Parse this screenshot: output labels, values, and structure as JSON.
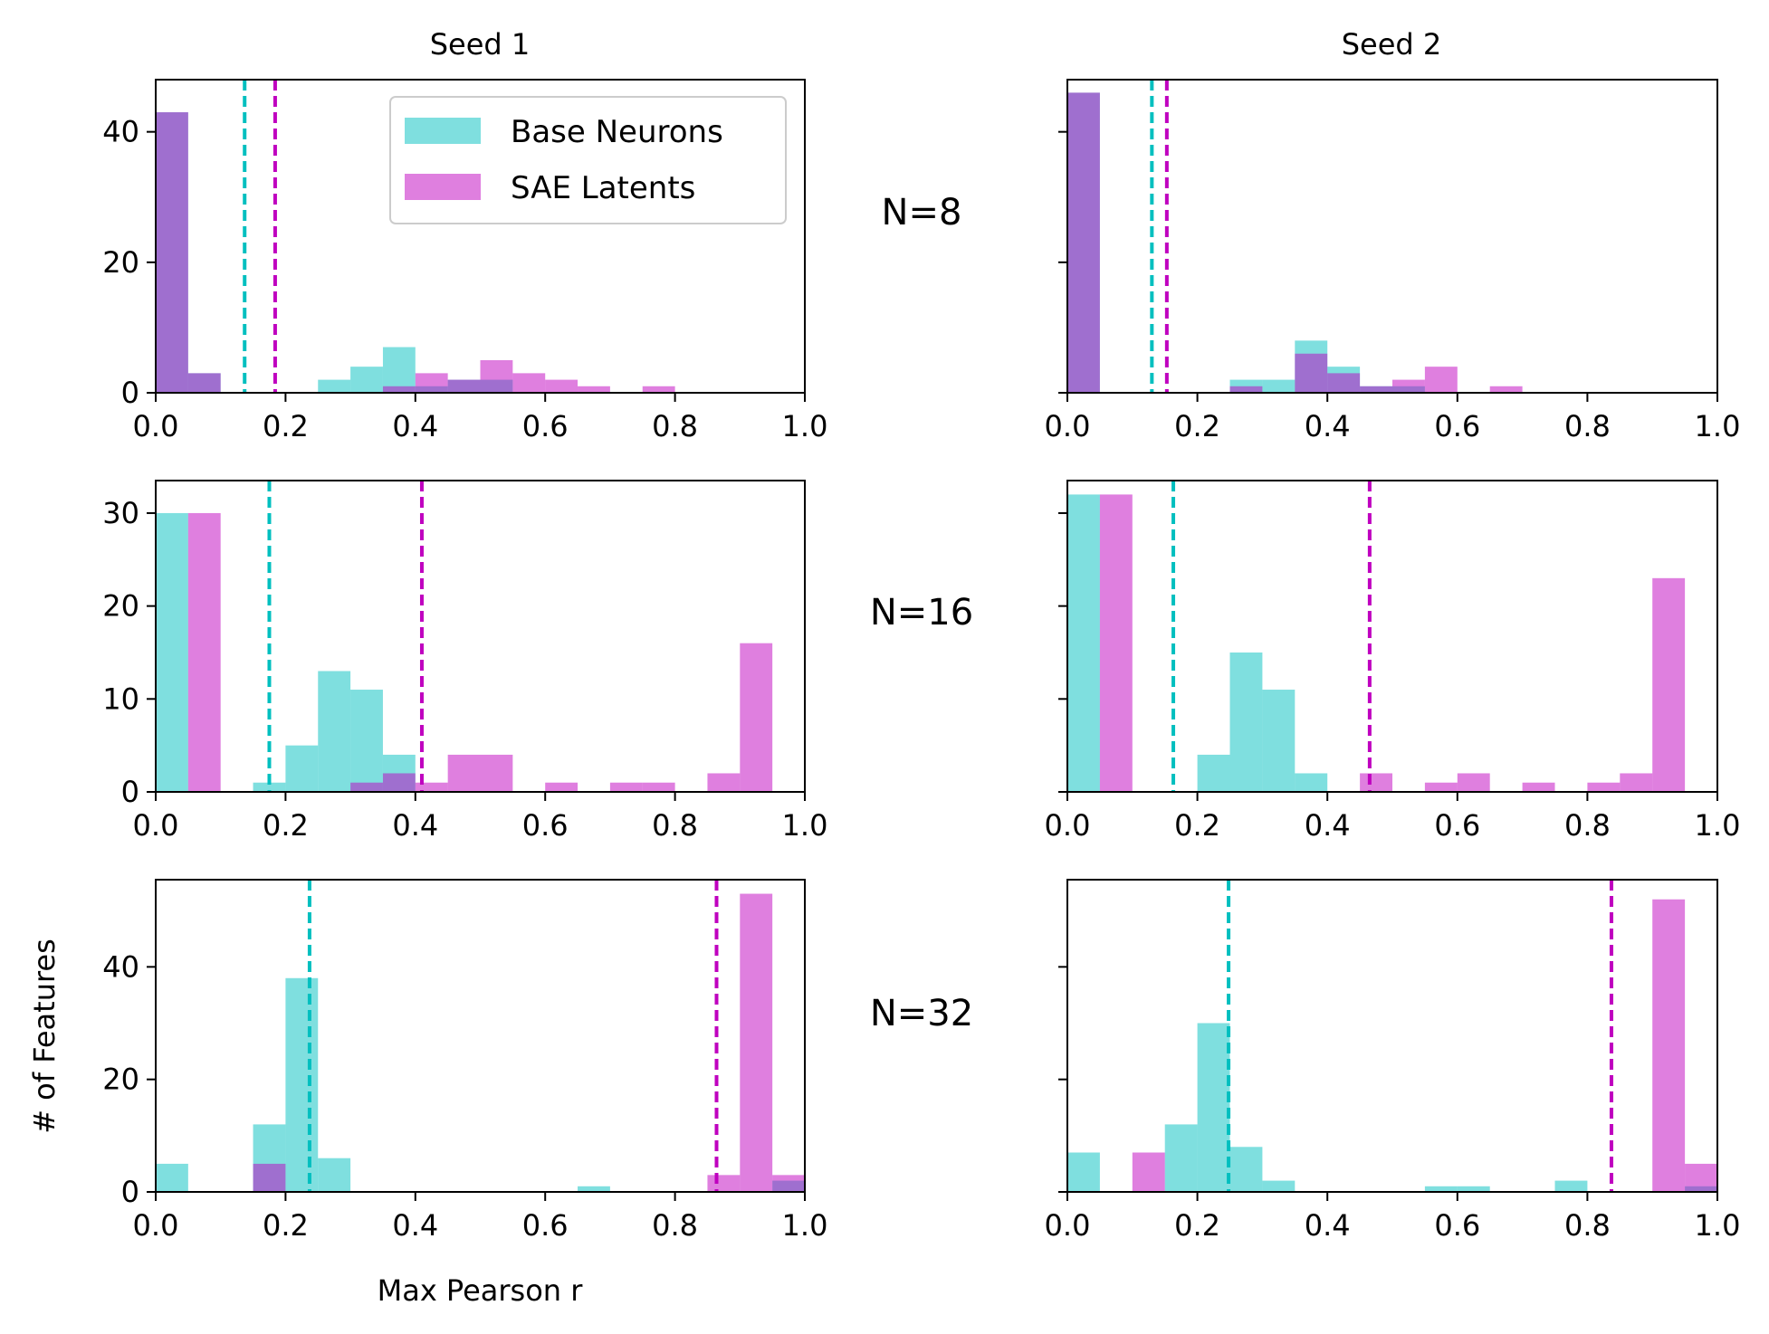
{
  "figure": {
    "colors": {
      "base": "#00bfbf",
      "sae": "#bf00bf",
      "base_fill": "#00bfbf",
      "sae_fill": "#bf00bf",
      "bar_alpha": 0.5
    }
  },
  "chart_data": {
    "type": "bar",
    "description_type": "histogram-grid",
    "col_titles": [
      "Seed 1",
      "Seed 2"
    ],
    "row_labels": [
      "N=8",
      "N=16",
      "N=32"
    ],
    "xlabel": "Max Pearson r",
    "ylabel": "# of Features",
    "legend": {
      "base": "Base Neurons",
      "sae": "SAE Latents",
      "placement": "upper-right of top-left panel"
    },
    "xlim": [
      0,
      1.0
    ],
    "x_ticks": [
      "0.0",
      "0.2",
      "0.4",
      "0.6",
      "0.8",
      "1.0"
    ],
    "x_tick_values": [
      0,
      0.2,
      0.4,
      0.6,
      0.8,
      1.0
    ],
    "bin_width": 0.05,
    "rows": [
      {
        "ylim": [
          0,
          48
        ],
        "y_ticks": [
          0,
          20,
          40
        ],
        "panels": [
          {
            "base": [
              [
                0.0,
                43
              ],
              [
                0.05,
                3
              ],
              [
                0.25,
                2
              ],
              [
                0.3,
                4
              ],
              [
                0.35,
                7
              ],
              [
                0.4,
                1
              ],
              [
                0.45,
                2
              ],
              [
                0.5,
                2
              ]
            ],
            "sae": [
              [
                0.0,
                43
              ],
              [
                0.05,
                3
              ],
              [
                0.35,
                1
              ],
              [
                0.4,
                3
              ],
              [
                0.45,
                2
              ],
              [
                0.5,
                5
              ],
              [
                0.55,
                3
              ],
              [
                0.6,
                2
              ],
              [
                0.65,
                1
              ],
              [
                0.75,
                1
              ]
            ],
            "base_mean": 0.137,
            "sae_mean": 0.184
          },
          {
            "base": [
              [
                0.0,
                46
              ],
              [
                0.25,
                2
              ],
              [
                0.3,
                2
              ],
              [
                0.35,
                8
              ],
              [
                0.4,
                4
              ],
              [
                0.45,
                1
              ],
              [
                0.5,
                1
              ]
            ],
            "sae": [
              [
                0.0,
                46
              ],
              [
                0.25,
                1
              ],
              [
                0.35,
                6
              ],
              [
                0.4,
                3
              ],
              [
                0.45,
                1
              ],
              [
                0.5,
                2
              ],
              [
                0.55,
                4
              ],
              [
                0.65,
                1
              ]
            ],
            "base_mean": 0.13,
            "sae_mean": 0.153
          }
        ]
      },
      {
        "ylim": [
          0,
          33.5
        ],
        "y_ticks": [
          0,
          10,
          20,
          30
        ],
        "panels": [
          {
            "base": [
              [
                0.0,
                30
              ],
              [
                0.15,
                1
              ],
              [
                0.2,
                5
              ],
              [
                0.25,
                13
              ],
              [
                0.3,
                11
              ],
              [
                0.35,
                4
              ]
            ],
            "sae": [
              [
                0.05,
                30
              ],
              [
                0.3,
                1
              ],
              [
                0.35,
                2
              ],
              [
                0.4,
                1
              ],
              [
                0.45,
                4
              ],
              [
                0.5,
                4
              ],
              [
                0.6,
                1
              ],
              [
                0.7,
                1
              ],
              [
                0.75,
                1
              ],
              [
                0.85,
                2
              ],
              [
                0.9,
                16
              ]
            ],
            "base_mean": 0.175,
            "sae_mean": 0.41
          },
          {
            "base": [
              [
                0.0,
                32
              ],
              [
                0.2,
                4
              ],
              [
                0.25,
                15
              ],
              [
                0.3,
                11
              ],
              [
                0.35,
                2
              ]
            ],
            "sae": [
              [
                0.05,
                32
              ],
              [
                0.45,
                2
              ],
              [
                0.55,
                1
              ],
              [
                0.6,
                2
              ],
              [
                0.7,
                1
              ],
              [
                0.8,
                1
              ],
              [
                0.85,
                2
              ],
              [
                0.9,
                23
              ]
            ],
            "base_mean": 0.163,
            "sae_mean": 0.465
          }
        ]
      },
      {
        "ylim": [
          0,
          55.5
        ],
        "y_ticks": [
          0,
          20,
          40
        ],
        "panels": [
          {
            "base": [
              [
                0.0,
                5
              ],
              [
                0.15,
                12
              ],
              [
                0.2,
                38
              ],
              [
                0.25,
                6
              ],
              [
                0.65,
                1
              ],
              [
                0.95,
                2
              ]
            ],
            "sae": [
              [
                0.15,
                5
              ],
              [
                0.85,
                3
              ],
              [
                0.9,
                53
              ],
              [
                0.95,
                3
              ]
            ],
            "base_mean": 0.237,
            "sae_mean": 0.864
          },
          {
            "base": [
              [
                0.0,
                7
              ],
              [
                0.15,
                12
              ],
              [
                0.2,
                30
              ],
              [
                0.25,
                8
              ],
              [
                0.3,
                2
              ],
              [
                0.55,
                1
              ],
              [
                0.6,
                1
              ],
              [
                0.75,
                2
              ],
              [
                0.95,
                1
              ]
            ],
            "sae": [
              [
                0.1,
                7
              ],
              [
                0.9,
                52
              ],
              [
                0.95,
                5
              ]
            ],
            "base_mean": 0.248,
            "sae_mean": 0.837
          }
        ]
      }
    ]
  }
}
